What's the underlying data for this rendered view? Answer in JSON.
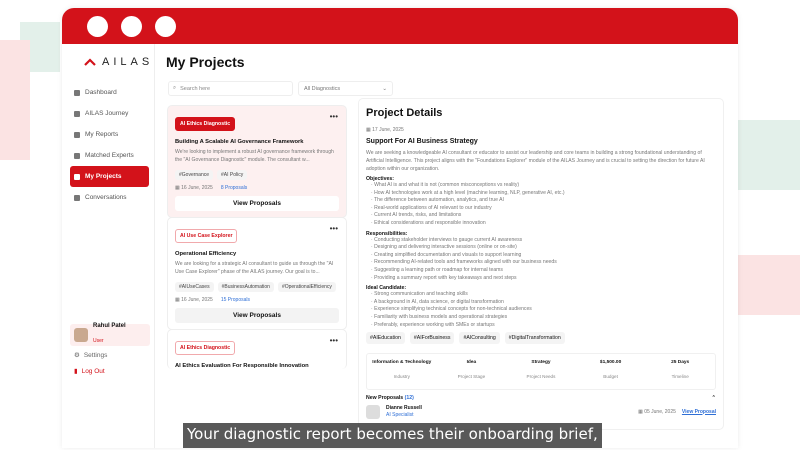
{
  "brand": {
    "name": "AILAS",
    "color": "#d3121a"
  },
  "sidebar": {
    "items": [
      {
        "label": "Dashboard",
        "icon": "dashboard-icon"
      },
      {
        "label": "AILAS Journey",
        "icon": "journey-icon"
      },
      {
        "label": "My Reports",
        "icon": "report-icon"
      },
      {
        "label": "Matched Experts",
        "icon": "experts-icon"
      },
      {
        "label": "My Projects",
        "icon": "projects-icon",
        "active": true
      },
      {
        "label": "Conversations",
        "icon": "chat-icon"
      }
    ],
    "user": {
      "name": "Rahul Patel",
      "role": "User"
    },
    "settings": "Settings",
    "logout": "Log Out"
  },
  "main": {
    "title": "My Projects",
    "search_placeholder": "Search here",
    "filter": "All Diagnostics",
    "cards": [
      {
        "badge": "AI Ethics Diagnostic",
        "title": "Building A Scalable AI Governance Framework",
        "desc": "We're looking to implement a robust AI governance framework through the \"AI Governance Diagnostic\" module. The consultant w...",
        "tags": [
          "#Governance",
          "#AI Policy"
        ],
        "date": "16 June, 2025",
        "proposals": "8 Proposals",
        "button": "View Proposals"
      },
      {
        "badge": "AI Use Case Explorer",
        "title": "Operational Efficiency",
        "desc": "We are looking for a strategic AI consultant to guide us through the \"AI Use Case Explorer\" phase of the AILAS journey. Our goal is to...",
        "tags": [
          "#AIUseCases",
          "#BusinessAutomation",
          "#OperationalEfficiency"
        ],
        "date": "16 June, 2025",
        "proposals": "15 Proposals",
        "button": "View Proposals"
      },
      {
        "badge": "AI Ethics Diagnostic",
        "title": "AI Ethics Evaluation For Responsible Innovation"
      }
    ]
  },
  "details": {
    "heading": "Project Details",
    "date": "17 June, 2025",
    "title": "Support For AI Business Strategy",
    "desc": "We are seeking a knowledgeable AI consultant or educator to assist our leadership and core teams in building a strong foundational understanding of Artificial Intelligence. This project aligns with the \"Foundations Explorer\" module of the AILAS Journey and is crucial to setting the direction for future AI adoption within our organization.",
    "objectives_label": "Objectives:",
    "objectives": [
      "What AI is and what it is not (common misconceptions vs reality)",
      "How AI technologies work at a high level (machine learning, NLP, generative AI, etc.)",
      "The difference between automation, analytics, and true AI",
      "Real-world applications of AI relevant to our industry",
      "Current AI trends, risks, and limitations",
      "Ethical considerations and responsible innovation"
    ],
    "responsibilities_label": "Responsibilities:",
    "responsibilities": [
      "Conducting stakeholder interviews to gauge current AI awareness",
      "Designing and delivering interactive sessions (online or on-site)",
      "Creating simplified documentation and visuals to support learning",
      "Recommending AI-related tools and frameworks aligned with our business needs",
      "Suggesting a learning path or roadmap for internal teams",
      "Providing a summary report with key takeaways and next steps"
    ],
    "candidate_label": "Ideal Candidate:",
    "candidate": [
      "Strong communication and teaching skills",
      "A background in AI, data science, or digital transformation",
      "Experience simplifying technical concepts for non-technical audiences",
      "Familiarity with business models and operational strategies",
      "Preferably, experience working with SMEs or startups"
    ],
    "tags": [
      "#AIEducation",
      "#AIForBusiness",
      "#AIConsulting",
      "#DigitalTransformation"
    ],
    "stats": [
      {
        "value": "Information & Technology",
        "label": "Industry"
      },
      {
        "value": "Idea",
        "label": "Project Stage"
      },
      {
        "value": "Strategy",
        "label": "Project Needs"
      },
      {
        "value": "$1,500.00",
        "label": "Budget"
      },
      {
        "value": "25 Days",
        "label": "Timeline"
      }
    ],
    "proposals_label": "New Proposals",
    "proposals_count": "(12)",
    "proposal": {
      "name": "Dianne Russell",
      "role": "AI Specialist",
      "date": "05 June, 2025",
      "link": "View Proposal"
    }
  },
  "caption": "Your diagnostic report becomes their onboarding brief,"
}
